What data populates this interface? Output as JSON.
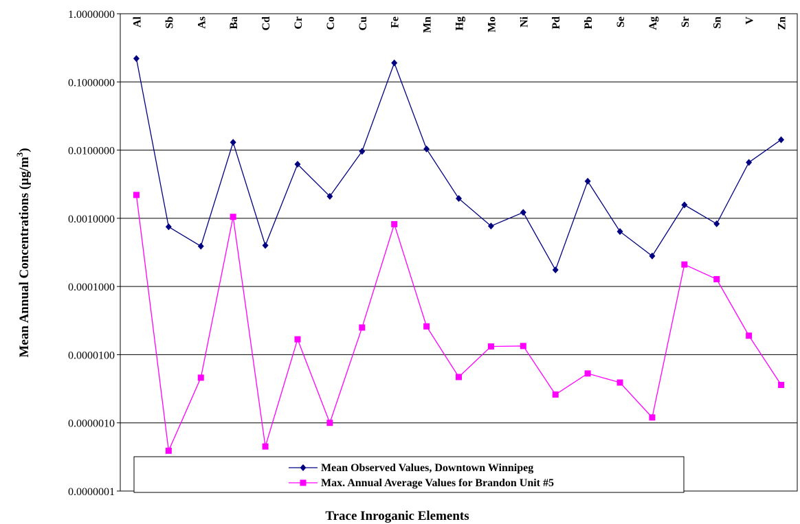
{
  "chart_data": {
    "type": "line",
    "xlabel": "Trace Inroganic Elements",
    "ylabel_main": "Mean Annual Concentrations (µg/m",
    "ylabel_sup": "3",
    "ylabel_close": ")",
    "yscale": "log",
    "ylim": [
      1e-07,
      1
    ],
    "yticks": [
      {
        "value": 1,
        "label": "1.0000000"
      },
      {
        "value": 0.1,
        "label": "0.1000000"
      },
      {
        "value": 0.01,
        "label": "0.0100000"
      },
      {
        "value": 0.001,
        "label": "0.0010000"
      },
      {
        "value": 0.0001,
        "label": "0.0001000"
      },
      {
        "value": 1e-05,
        "label": "0.0000100"
      },
      {
        "value": 1e-06,
        "label": "0.0000010"
      },
      {
        "value": 1e-07,
        "label": "0.0000001"
      }
    ],
    "grid": true,
    "categories": [
      "Al",
      "Sb",
      "As",
      "Ba",
      "Cd",
      "Cr",
      "Co",
      "Cu",
      "Fe",
      "Mn",
      "Hg",
      "Mo",
      "Ni",
      "Pd",
      "Pb",
      "Se",
      "Ag",
      "Sr",
      "Sn",
      "V",
      "Zn"
    ],
    "series": [
      {
        "name": "Mean Observed Values, Downtown Winnipeg",
        "color": "#000080",
        "marker": "diamond",
        "values": [
          0.22,
          0.00075,
          0.00039,
          0.013,
          0.0004,
          0.0062,
          0.0021,
          0.0096,
          0.19,
          0.0104,
          0.00195,
          0.00077,
          0.00122,
          0.000175,
          0.0035,
          0.00064,
          0.00028,
          0.00157,
          0.00083,
          0.0066,
          0.0142
        ]
      },
      {
        "name": "Max. Annual Average Values for Brandon Unit #5",
        "color": "#ff00ff",
        "marker": "square",
        "values": [
          0.0022,
          3.9e-07,
          4.6e-06,
          0.00105,
          4.5e-07,
          1.68e-05,
          1e-06,
          2.5e-05,
          0.00082,
          2.6e-05,
          4.7e-06,
          1.32e-05,
          1.34e-05,
          2.6e-06,
          5.3e-06,
          3.9e-06,
          1.2e-06,
          0.00021,
          0.000128,
          1.9e-05,
          3.6e-06
        ]
      }
    ],
    "legend_position": "bottom-center"
  }
}
